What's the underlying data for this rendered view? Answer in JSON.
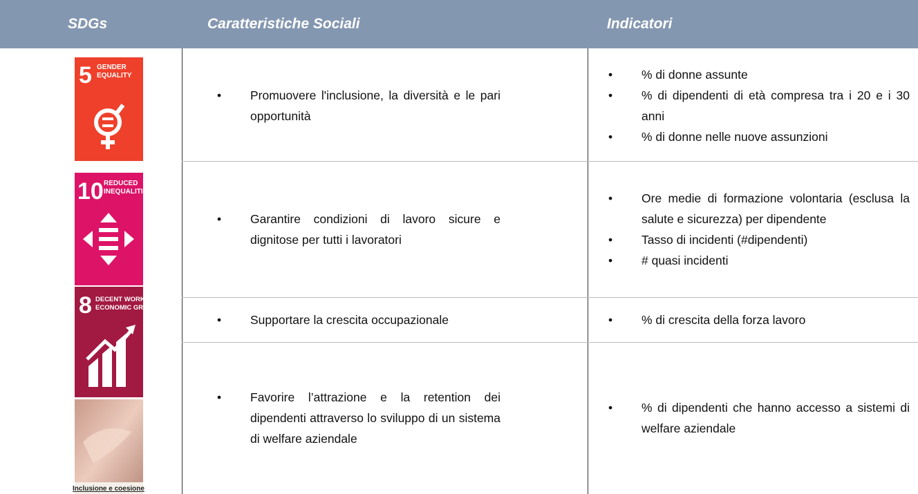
{
  "header": {
    "columns": [
      "SDGs",
      "Caratteristiche Sociali",
      "Indicatori"
    ]
  },
  "sdgs": [
    {
      "number": "5",
      "label": [
        "GENDER",
        "EQUALITY"
      ]
    },
    {
      "number": "10",
      "label": [
        "REDUCED",
        "INEQUALITIES"
      ]
    },
    {
      "number": "8",
      "label": [
        "DECENT WORK AND",
        "ECONOMIC GROWTH"
      ]
    },
    {
      "caption": "Inclusione e coesione"
    }
  ],
  "rows": [
    {
      "characteristic": "Promuovere l'inclusione, la diversità e le pari opportunità",
      "indicators": [
        "% di donne assunte",
        "% di dipendenti di età compresa tra i 20 e i 30 anni",
        "% di donne nelle nuove assunzioni"
      ]
    },
    {
      "characteristic": "Garantire condizioni di lavoro sicure e dignitose per tutti i lavoratori",
      "indicators": [
        "Ore medie di formazione volontaria (esclusa la salute e sicurezza) per dipendente",
        "Tasso di incidenti (#dipendenti)",
        "# quasi incidenti"
      ]
    },
    {
      "characteristic": "Supportare la crescita occupazionale",
      "indicators": [
        "% di crescita della forza lavoro"
      ]
    },
    {
      "characteristic": "Favorire l’attrazione e la retention dei dipendenti attraverso lo sviluppo di un sistema di welfare aziendale",
      "indicators": [
        "% di dipendenti che hanno accesso a sistemi di welfare aziendale"
      ]
    }
  ]
}
